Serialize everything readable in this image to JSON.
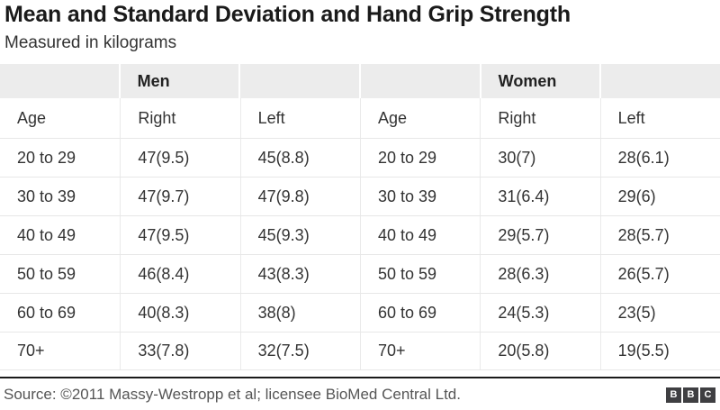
{
  "header": {
    "title": "Mean and Standard Deviation and Hand Grip Strength",
    "subtitle": "Measured in kilograms"
  },
  "chart_data": {
    "type": "table",
    "title": "Mean and Standard Deviation and Hand Grip Strength",
    "subtitle": "Measured in kilograms",
    "units": "kilograms",
    "groups": [
      "Men",
      "Women"
    ],
    "group_cells": [
      "",
      "Men",
      "",
      "",
      "Women",
      ""
    ],
    "columns": [
      "Age",
      "Right",
      "Left",
      "Age",
      "Right",
      "Left"
    ],
    "rows": [
      [
        "20 to 29",
        "47(9.5)",
        "45(8.8)",
        "20 to 29",
        "30(7)",
        "28(6.1)"
      ],
      [
        "30 to 39",
        "47(9.7)",
        "47(9.8)",
        "30 to 39",
        "31(6.4)",
        "29(6)"
      ],
      [
        "40 to 49",
        "47(9.5)",
        "45(9.3)",
        "40 to 49",
        "29(5.7)",
        "28(5.7)"
      ],
      [
        "50 to 59",
        "46(8.4)",
        "43(8.3)",
        "50 to 59",
        "28(6.3)",
        "26(5.7)"
      ],
      [
        "60 to 69",
        "40(8.3)",
        "38(8)",
        "60 to 69",
        "24(5.3)",
        "23(5)"
      ],
      [
        "70+",
        "33(7.8)",
        "32(7.5)",
        "70+",
        "20(5.8)",
        "19(5.5)"
      ]
    ],
    "layout": {
      "columns_equal_width": true,
      "group_header_background": "#ececec",
      "row_dividers": true,
      "column_dividers": true
    }
  },
  "footer": {
    "source": "Source: ©2011 Massy-Westropp et al; licensee BioMed Central Ltd.",
    "logo_letters": [
      "B",
      "B",
      "C"
    ]
  },
  "colors": {
    "title_text": "#1a1a1a",
    "body_text": "#333333",
    "footer_text": "#555555",
    "group_band_bg": "#ececec",
    "divider": "#e7e7e7",
    "rule": "#1a1a1a",
    "logo_bg": "#3f3f42"
  }
}
